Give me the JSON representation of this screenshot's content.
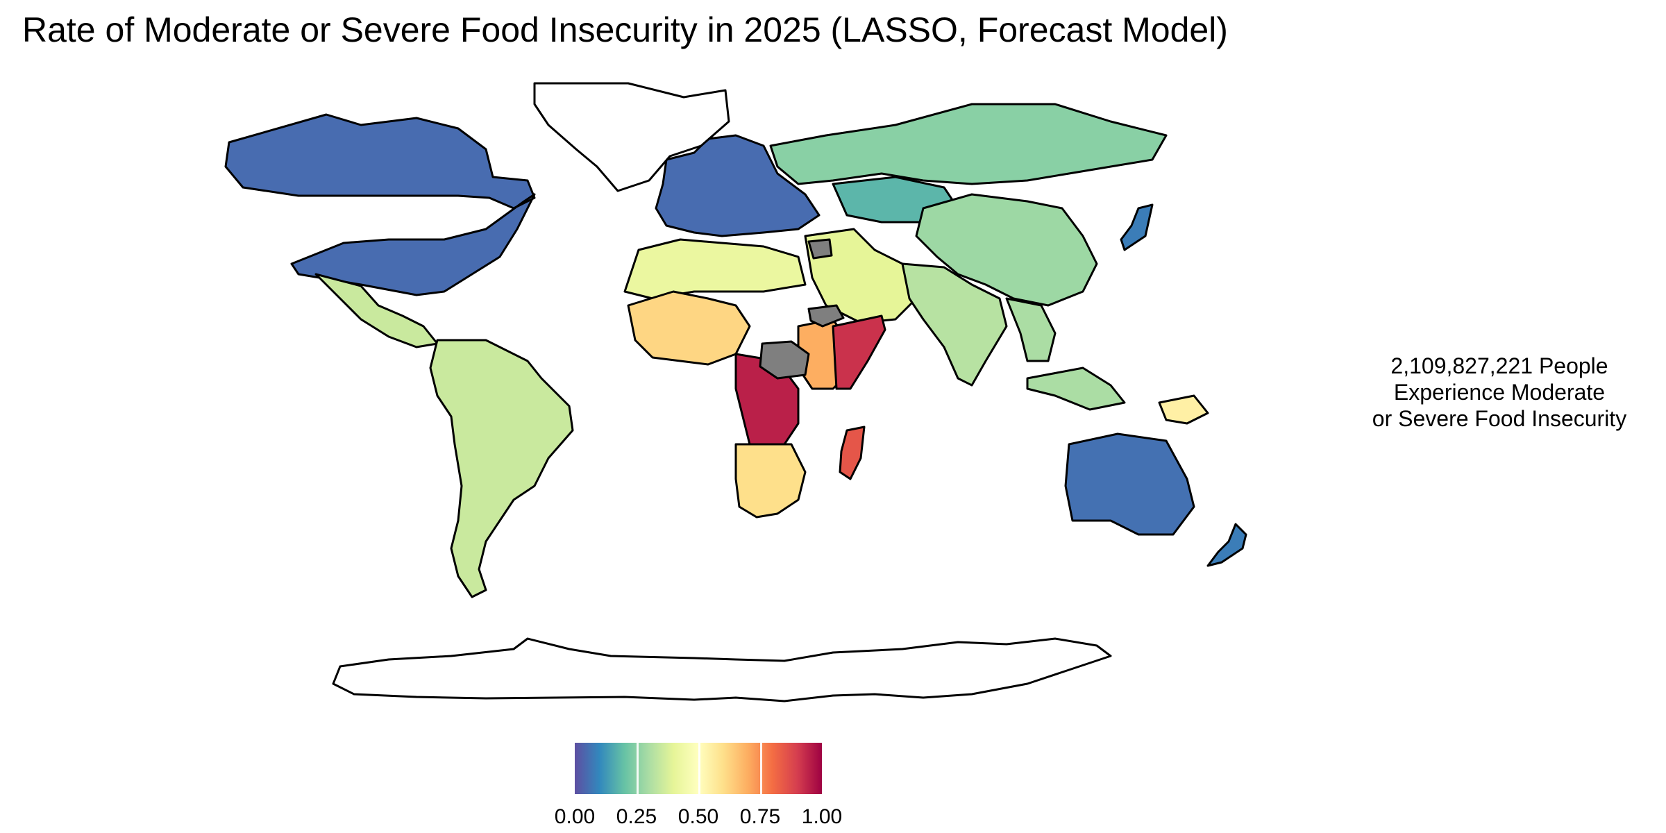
{
  "title": "Rate of Moderate or Severe Food Insecurity in 2025 (LASSO, Forecast Model)",
  "annotation": {
    "line1": "2,109,827,221 People",
    "line2": "Experience Moderate",
    "line3": "or Severe Food Insecurity"
  },
  "legend": {
    "palette": "Spectral (reversed)",
    "colors": [
      "#5e4fa2",
      "#3288bd",
      "#66c2a5",
      "#abdda4",
      "#e6f598",
      "#ffffbf",
      "#fee08b",
      "#fdae61",
      "#f46d43",
      "#d53e4f",
      "#9e0142"
    ],
    "min": 0,
    "max": 1,
    "ticks": [
      "0.00",
      "0.25",
      "0.50",
      "0.75",
      "1.00"
    ],
    "missing_color": "#7f7f7f"
  },
  "regions": [
    {
      "name": "North America (USA, Canada)",
      "rate": 0.05
    },
    {
      "name": "Mexico & Central America",
      "rate": 0.35
    },
    {
      "name": "South America",
      "rate": 0.35
    },
    {
      "name": "Europe",
      "rate": 0.05
    },
    {
      "name": "Russia",
      "rate": 0.25
    },
    {
      "name": "North Africa",
      "rate": 0.42
    },
    {
      "name": "Middle East",
      "rate": 0.4
    },
    {
      "name": "Central Asia",
      "rate": 0.18
    },
    {
      "name": "China",
      "rate": 0.28
    },
    {
      "name": "India & South Asia",
      "rate": 0.32
    },
    {
      "name": "Southeast Asia",
      "rate": 0.3
    },
    {
      "name": "West Africa",
      "rate": 0.62
    },
    {
      "name": "Central Africa (DR Congo)",
      "rate": 0.95
    },
    {
      "name": "East Africa",
      "rate": 0.7
    },
    {
      "name": "Somalia",
      "rate": 0.92
    },
    {
      "name": "Southern Africa",
      "rate": 0.6
    },
    {
      "name": "Madagascar",
      "rate": 0.85
    },
    {
      "name": "Australia",
      "rate": 0.06
    },
    {
      "name": "New Zealand",
      "rate": 0.08
    },
    {
      "name": "Japan",
      "rate": 0.08
    },
    {
      "name": "Papua New Guinea",
      "rate": 0.55
    }
  ]
}
